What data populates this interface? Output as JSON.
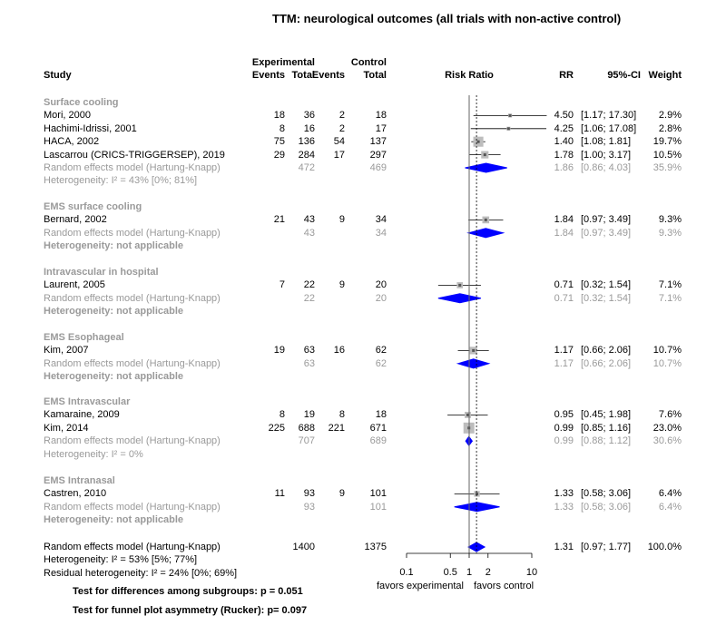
{
  "title": "TTM: neurological outcomes (all trials with non-active control)",
  "headers": {
    "experimental": "Experimental",
    "control": "Control",
    "study": "Study",
    "events_e": "Events",
    "total_e": "Total",
    "events_c": "Events",
    "total_c": "Total",
    "risk_ratio": "Risk Ratio",
    "rr": "RR",
    "ci": "95%-CI",
    "weight": "Weight"
  },
  "colors": {
    "pooled": "#0000ff",
    "grey_text": "#9a9a9a",
    "square": "#bdbdbd"
  },
  "subgroups": [
    {
      "name": "Surface cooling",
      "studies": [
        {
          "study": "Mori, 2000",
          "ee": "18",
          "te": "36",
          "ec": "2",
          "tc": "18",
          "rr": 4.5,
          "lo": 1.17,
          "hi": 17.3,
          "rr_text": "4.50",
          "ci_text": "[1.17; 17.30]",
          "w": "2.9%"
        },
        {
          "study": "Hachimi-Idrissi, 2001",
          "ee": "8",
          "te": "16",
          "ec": "2",
          "tc": "17",
          "rr": 4.25,
          "lo": 1.06,
          "hi": 17.08,
          "rr_text": "4.25",
          "ci_text": "[1.06; 17.08]",
          "w": "2.8%"
        },
        {
          "study": "HACA, 2002",
          "ee": "75",
          "te": "136",
          "ec": "54",
          "tc": "137",
          "rr": 1.4,
          "lo": 1.08,
          "hi": 1.81,
          "rr_text": "1.40",
          "ci_text": "[1.08;  1.81]",
          "w": "19.7%"
        },
        {
          "study": "Lascarrou (CRICS-TRIGGERSEP), 2019",
          "ee": "29",
          "te": "284",
          "ec": "17",
          "tc": "297",
          "rr": 1.78,
          "lo": 1.0,
          "hi": 3.17,
          "rr_text": "1.78",
          "ci_text": "[1.00;  3.17]",
          "w": "10.5%"
        }
      ],
      "random": {
        "label": "Random effects model  (Hartung-Knapp)",
        "te": "472",
        "tc": "469",
        "rr": 1.86,
        "lo": 0.86,
        "hi": 4.03,
        "rr_text": "1.86",
        "ci_text": "[0.86;  4.03]",
        "w": "35.9%"
      },
      "het": "Heterogeneity: I² = 43% [0%; 81%]",
      "het_bold": false
    },
    {
      "name": "EMS surface cooling",
      "studies": [
        {
          "study": "Bernard, 2002",
          "ee": "21",
          "te": "43",
          "ec": "9",
          "tc": "34",
          "rr": 1.84,
          "lo": 0.97,
          "hi": 3.49,
          "rr_text": "1.84",
          "ci_text": "[0.97;  3.49]",
          "w": "9.3%"
        }
      ],
      "random": {
        "label": "Random effects model  (Hartung-Knapp)",
        "te": "43",
        "tc": "34",
        "rr": 1.84,
        "lo": 0.97,
        "hi": 3.49,
        "rr_text": "1.84",
        "ci_text": "[0.97;  3.49]",
        "w": "9.3%"
      },
      "het": "Heterogeneity: not applicable",
      "het_bold": true
    },
    {
      "name": "Intravascular in hospital",
      "studies": [
        {
          "study": "Laurent, 2005",
          "ee": "7",
          "te": "22",
          "ec": "9",
          "tc": "20",
          "rr": 0.71,
          "lo": 0.32,
          "hi": 1.54,
          "rr_text": "0.71",
          "ci_text": "[0.32;  1.54]",
          "w": "7.1%"
        }
      ],
      "random": {
        "label": "Random effects model  (Hartung-Knapp)",
        "te": "22",
        "tc": "20",
        "rr": 0.71,
        "lo": 0.32,
        "hi": 1.54,
        "rr_text": "0.71",
        "ci_text": "[0.32;  1.54]",
        "w": "7.1%"
      },
      "het": "Heterogeneity: not applicable",
      "het_bold": true
    },
    {
      "name": "EMS Esophageal",
      "studies": [
        {
          "study": "Kim, 2007",
          "ee": "19",
          "te": "63",
          "ec": "16",
          "tc": "62",
          "rr": 1.17,
          "lo": 0.66,
          "hi": 2.06,
          "rr_text": "1.17",
          "ci_text": "[0.66;  2.06]",
          "w": "10.7%"
        }
      ],
      "random": {
        "label": "Random effects model  (Hartung-Knapp)",
        "te": "63",
        "tc": "62",
        "rr": 1.17,
        "lo": 0.66,
        "hi": 2.06,
        "rr_text": "1.17",
        "ci_text": "[0.66;  2.06]",
        "w": "10.7%"
      },
      "het": "Heterogeneity: not applicable",
      "het_bold": true
    },
    {
      "name": "EMS Intravascular",
      "studies": [
        {
          "study": "Kamaraine, 2009",
          "ee": "8",
          "te": "19",
          "ec": "8",
          "tc": "18",
          "rr": 0.95,
          "lo": 0.45,
          "hi": 1.98,
          "rr_text": "0.95",
          "ci_text": "[0.45;  1.98]",
          "w": "7.6%"
        },
        {
          "study": "Kim, 2014",
          "ee": "225",
          "te": "688",
          "ec": "221",
          "tc": "671",
          "rr": 0.99,
          "lo": 0.85,
          "hi": 1.16,
          "rr_text": "0.99",
          "ci_text": "[0.85;  1.16]",
          "w": "23.0%"
        }
      ],
      "random": {
        "label": "Random effects model  (Hartung-Knapp)",
        "te": "707",
        "tc": "689",
        "rr": 0.99,
        "lo": 0.88,
        "hi": 1.12,
        "rr_text": "0.99",
        "ci_text": "[0.88;  1.12]",
        "w": "30.6%"
      },
      "het": "Heterogeneity: I² = 0%",
      "het_bold": false
    },
    {
      "name": "EMS Intranasal",
      "studies": [
        {
          "study": "Castren, 2010",
          "ee": "11",
          "te": "93",
          "ec": "9",
          "tc": "101",
          "rr": 1.33,
          "lo": 0.58,
          "hi": 3.06,
          "rr_text": "1.33",
          "ci_text": "[0.58;  3.06]",
          "w": "6.4%"
        }
      ],
      "random": {
        "label": "Random effects model  (Hartung-Knapp)",
        "te": "93",
        "tc": "101",
        "rr": 1.33,
        "lo": 0.58,
        "hi": 3.06,
        "rr_text": "1.33",
        "ci_text": "[0.58;  3.06]",
        "w": "6.4%"
      },
      "het": "Heterogeneity: not applicable",
      "het_bold": true
    }
  ],
  "overall": {
    "label": "Random effects model  (Hartung-Knapp)",
    "te": "1400",
    "tc": "1375",
    "rr": 1.31,
    "lo": 0.97,
    "hi": 1.77,
    "rr_text": "1.31",
    "ci_text": "[0.97;  1.77]",
    "w": "100.0%",
    "het": "Heterogeneity: I² = 53% [5%; 77%]",
    "resid": "Residual heterogeneity: I² = 24% [0%; 69%]"
  },
  "axis": {
    "ticks": [
      0.1,
      0.5,
      1,
      2,
      10
    ],
    "tick_labels": [
      "0.1",
      "0.5",
      "1",
      "2",
      "10"
    ],
    "favors_left": "favors experimental",
    "favors_right": "favors control"
  },
  "tests": [
    "Test for differences among subgroups: p = 0.051",
    "Test for funnel plot asymmetry (Rucker): p= 0.097"
  ],
  "chart_data": {
    "type": "forest",
    "title": "TTM: neurological outcomes (all trials with non-active control)",
    "xlabel": "Risk Ratio",
    "xscale": "log",
    "xlim": [
      0.1,
      10
    ],
    "reference_line": 1,
    "pooled_line": 1.31
  }
}
